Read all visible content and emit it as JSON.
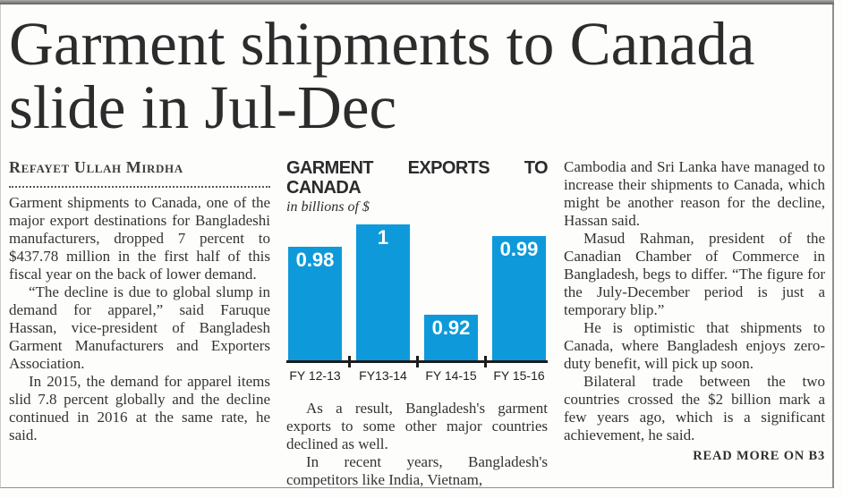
{
  "page": {
    "headline": "Garment shipments to Canada slide in Jul-Dec",
    "byline": "Refayet Ullah Mirdha",
    "read_more": "READ MORE ON B3"
  },
  "columns": {
    "left": [
      "Garment shipments to Canada, one of the major export destinations for Bangladeshi manufacturers, dropped 7 percent to $437.78 million in the first half of this fiscal year on the back of lower demand.",
      "“The decline is due to global slump in demand for apparel,” said Faruque Hassan, vice-president of Bangladesh Garment Manufacturers and Exporters Association.",
      "In 2015, the demand for apparel items slid 7.8 percent globally and the decline continued in 2016 at the same rate, he said."
    ],
    "middle": [
      "As a result, Bangladesh's garment exports to some other major countries declined as well.",
      "In recent years, Bangladesh's competitors like India, Vietnam,"
    ],
    "right": [
      "Cambodia and Sri Lanka have managed to increase their shipments to Canada, which might be another reason for the decline, Hassan said.",
      "Masud Rahman, president of the Canadian Chamber of Commerce in Bangladesh, begs to differ. “The figure for the July-December period is just a temporary blip.”",
      "He is optimistic that shipments to Canada, where Bangladesh enjoys zero-duty benefit, will pick up soon.",
      "Bilateral trade between the two countries crossed the $2 billion mark a few years ago, which is a significant achievement, he said."
    ]
  },
  "chart_data": {
    "type": "bar",
    "title": "GARMENT EXPORTS TO CANADA",
    "subtitle": "in billions of $",
    "categories": [
      "FY 12-13",
      "FY13-14",
      "FY 14-15",
      "FY 15-16"
    ],
    "values": [
      0.98,
      1,
      0.92,
      0.99
    ],
    "value_labels": [
      "0.98",
      "1",
      "0.92",
      "0.99"
    ],
    "xlabel": "",
    "ylabel": "in billions of $",
    "ylim": [
      0.88,
      1.0
    ],
    "grid": false,
    "legend": "none",
    "bar_color": "#0e9ada",
    "axis_color": "#1c1c1c",
    "value_label_color": "#ffffff"
  }
}
